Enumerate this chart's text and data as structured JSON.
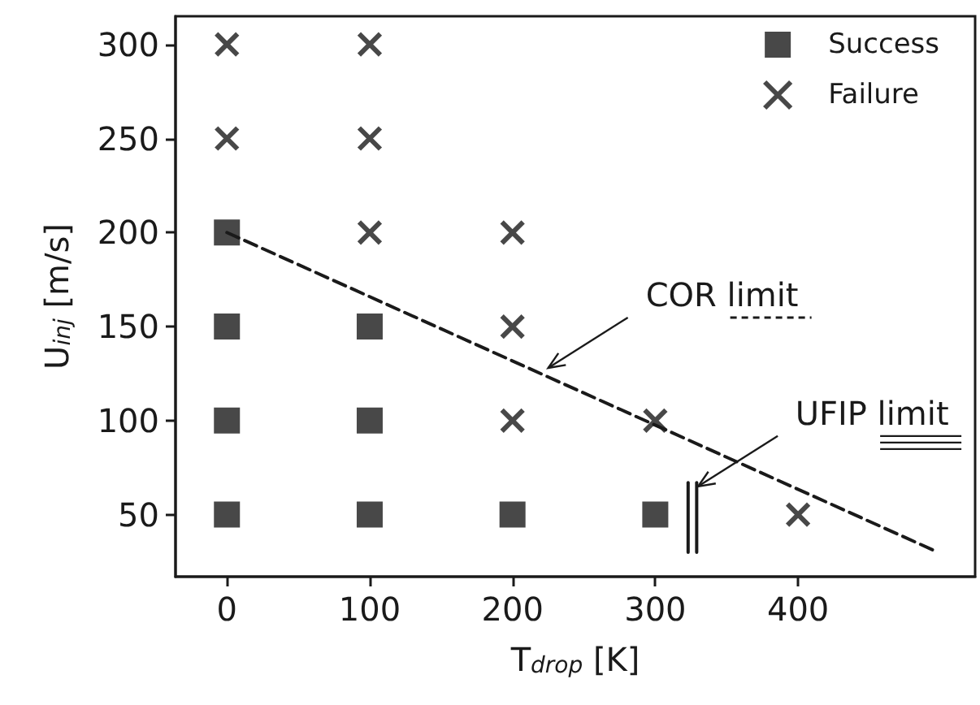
{
  "chart_data": {
    "type": "scatter",
    "xlabel": "T$_{drop}$ [K]",
    "ylabel": "U$_{inj}$ [m/s]",
    "xlim": [
      -36,
      524
    ],
    "ylim": [
      17,
      315
    ],
    "xticks": [
      0,
      100,
      200,
      300,
      400
    ],
    "yticks": [
      50,
      100,
      150,
      200,
      250,
      300
    ],
    "grid": false,
    "legend": "top right",
    "series": [
      {
        "name": "Success",
        "marker": "square",
        "color": "#1a1a1a",
        "x": [
          0,
          0,
          0,
          0,
          100,
          100,
          100,
          200,
          300
        ],
        "values": [
          200,
          150,
          100,
          50,
          150,
          100,
          50,
          50,
          50
        ]
      },
      {
        "name": "Failure",
        "marker": "cross",
        "color": "#1a1a1a",
        "x": [
          0,
          0,
          100,
          100,
          100,
          200,
          200,
          200,
          300,
          400
        ],
        "values": [
          300,
          250,
          300,
          250,
          200,
          200,
          150,
          100,
          100,
          50
        ]
      },
      {
        "type": "line",
        "line_style": "dashed",
        "color": "#1a1a1a",
        "x": [
          0,
          498
        ],
        "values": [
          200,
          30
        ]
      },
      {
        "type": "line",
        "line_style": "solid",
        "color": "#1a1a1a",
        "x": [
          323,
          323
        ],
        "values": [
          30,
          67
        ]
      },
      {
        "type": "line",
        "line_style": "solid",
        "color": "#1a1a1a",
        "x": [
          329,
          329
        ],
        "values": [
          30,
          67
        ]
      }
    ],
    "annotations": [
      {
        "text": "COR limit",
        "x": 225,
        "y": 128
      },
      {
        "text": "UFIP limit",
        "x": 330,
        "y": 65
      }
    ]
  }
}
